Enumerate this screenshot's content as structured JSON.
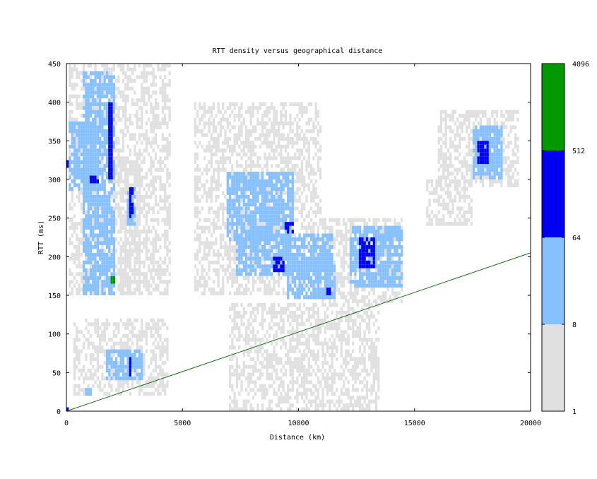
{
  "chart_data": {
    "type": "heatmap",
    "title": "RTT density versus geographical distance",
    "xlabel": "Distance (km)",
    "ylabel": "RTT (ms)",
    "xlim": [
      0,
      20000
    ],
    "ylim": [
      0,
      450
    ],
    "x_ticks": [
      0,
      5000,
      10000,
      15000,
      20000
    ],
    "y_ticks": [
      0,
      50,
      100,
      150,
      200,
      250,
      300,
      350,
      400,
      450
    ],
    "bin_size": {
      "distance_km": 100,
      "rtt_ms": 5
    },
    "colorbar": {
      "scale": "log2",
      "tick_labels": [
        "1",
        "8",
        "64",
        "512",
        "4096"
      ],
      "bands": [
        {
          "from": 1,
          "to": 8,
          "color": "#e0e0e0"
        },
        {
          "from": 8,
          "to": 64,
          "color": "#87c0ff"
        },
        {
          "from": 64,
          "to": 512,
          "color": "#0000ee"
        },
        {
          "from": 512,
          "to": 4096,
          "color": "#009900"
        }
      ]
    },
    "reference_line": {
      "color": "#1a6b1a",
      "points": [
        [
          0,
          0
        ],
        [
          20000,
          205
        ]
      ]
    },
    "density_regions": [
      {
        "level": 1,
        "x": [
          100,
          4500
        ],
        "y": [
          150,
          450
        ]
      },
      {
        "level": 2,
        "x": [
          100,
          1300
        ],
        "y": [
          285,
          375
        ]
      },
      {
        "level": 2,
        "x": [
          700,
          2100
        ],
        "y": [
          150,
          440
        ]
      },
      {
        "level": 3,
        "x": [
          1800,
          2000
        ],
        "y": [
          300,
          400
        ]
      },
      {
        "level": 3,
        "x": [
          1000,
          1400
        ],
        "y": [
          295,
          305
        ]
      },
      {
        "level": 3,
        "x": [
          0,
          100
        ],
        "y": [
          315,
          325
        ]
      },
      {
        "level": 2,
        "x": [
          2600,
          3000
        ],
        "y": [
          240,
          290
        ]
      },
      {
        "level": 3,
        "x": [
          2700,
          2900
        ],
        "y": [
          250,
          290
        ]
      },
      {
        "level": 1,
        "x": [
          2300,
          3200
        ],
        "y": [
          150,
          330
        ]
      },
      {
        "level": 4,
        "x": [
          1900,
          2050
        ],
        "y": [
          165,
          175
        ]
      },
      {
        "level": 1,
        "x": [
          300,
          4400
        ],
        "y": [
          20,
          120
        ]
      },
      {
        "level": 2,
        "x": [
          1700,
          3300
        ],
        "y": [
          40,
          80
        ]
      },
      {
        "level": 3,
        "x": [
          2700,
          2800
        ],
        "y": [
          45,
          70
        ]
      },
      {
        "level": 2,
        "x": [
          800,
          1100
        ],
        "y": [
          20,
          30
        ]
      },
      {
        "level": 3,
        "x": [
          0,
          150
        ],
        "y": [
          0,
          5
        ]
      },
      {
        "level": 1,
        "x": [
          5500,
          11000
        ],
        "y": [
          150,
          400
        ]
      },
      {
        "level": 2,
        "x": [
          6900,
          9800
        ],
        "y": [
          220,
          310
        ]
      },
      {
        "level": 2,
        "x": [
          7300,
          11500
        ],
        "y": [
          175,
          230
        ]
      },
      {
        "level": 2,
        "x": [
          9500,
          11600
        ],
        "y": [
          145,
          200
        ]
      },
      {
        "level": 3,
        "x": [
          8900,
          9400
        ],
        "y": [
          180,
          200
        ]
      },
      {
        "level": 3,
        "x": [
          9400,
          9800
        ],
        "y": [
          230,
          245
        ]
      },
      {
        "level": 3,
        "x": [
          11200,
          11400
        ],
        "y": [
          150,
          160
        ]
      },
      {
        "level": 1,
        "x": [
          11000,
          14500
        ],
        "y": [
          140,
          250
        ]
      },
      {
        "level": 2,
        "x": [
          12200,
          14500
        ],
        "y": [
          160,
          240
        ]
      },
      {
        "level": 3,
        "x": [
          12600,
          13300
        ],
        "y": [
          185,
          225
        ]
      },
      {
        "level": 1,
        "x": [
          15500,
          17500
        ],
        "y": [
          240,
          300
        ]
      },
      {
        "level": 1,
        "x": [
          16000,
          19500
        ],
        "y": [
          290,
          390
        ]
      },
      {
        "level": 2,
        "x": [
          17500,
          18800
        ],
        "y": [
          300,
          370
        ]
      },
      {
        "level": 3,
        "x": [
          17700,
          18200
        ],
        "y": [
          320,
          350
        ]
      },
      {
        "level": 1,
        "x": [
          7000,
          13500
        ],
        "y": [
          0,
          140
        ]
      }
    ]
  }
}
